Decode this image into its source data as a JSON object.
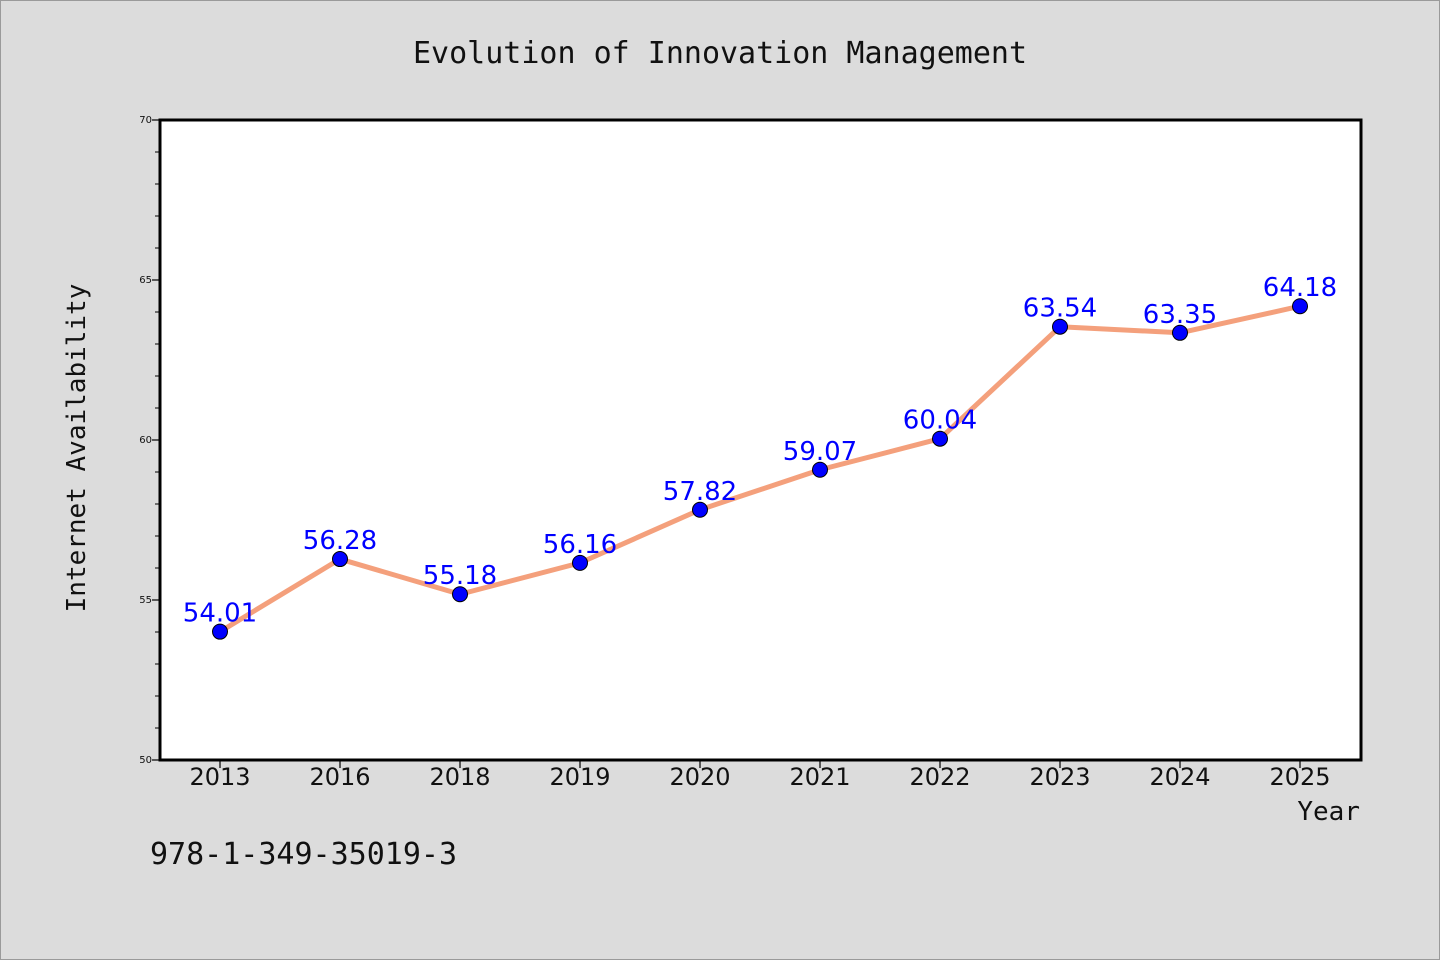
{
  "chart_data": {
    "type": "line",
    "title": "Evolution of Innovation Management",
    "xlabel": "Year",
    "ylabel": "Internet Availability",
    "categories": [
      "2013",
      "2016",
      "2018",
      "2019",
      "2020",
      "2021",
      "2022",
      "2023",
      "2024",
      "2025"
    ],
    "series": [
      {
        "values": [
          54.01,
          56.28,
          55.18,
          56.16,
          57.82,
          59.07,
          60.04,
          63.54,
          63.35,
          64.18
        ]
      }
    ],
    "data_labels": [
      "54.01",
      "56.28",
      "55.18",
      "56.16",
      "57.82",
      "59.07",
      "60.04",
      "63.54",
      "63.35",
      "64.18"
    ],
    "ylim": [
      50,
      70
    ],
    "y_ticks": [
      "50",
      "55",
      "60",
      "65",
      "70"
    ],
    "grid": false,
    "line_color": "#f4a07c",
    "marker_color": "#0000ff",
    "label_color": "#0000ff"
  },
  "footer_text": "978-1-349-35019-3"
}
